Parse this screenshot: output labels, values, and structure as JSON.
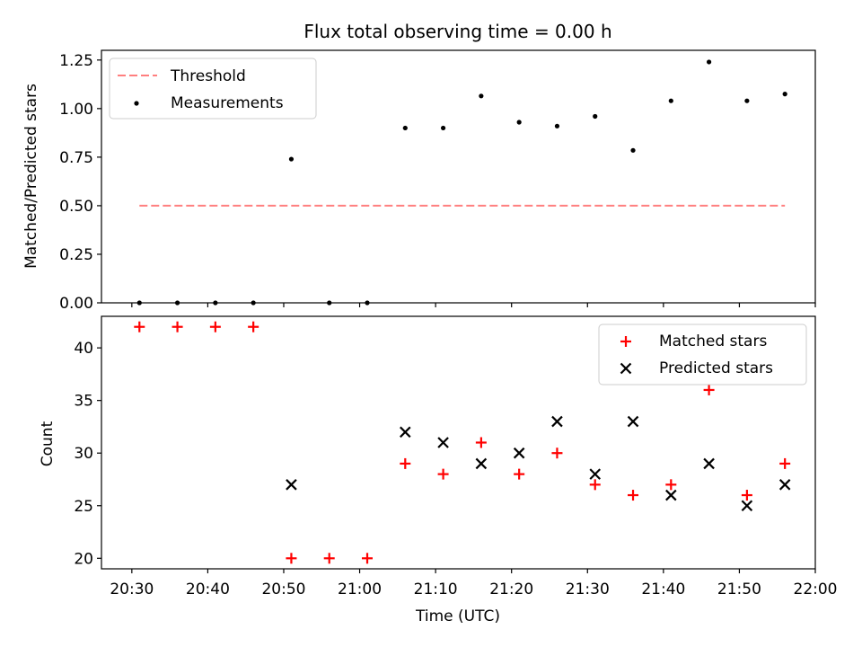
{
  "chart_data": {
    "title": "Flux total observing time = 0.00 h",
    "xlabel": "Time (UTC)",
    "x_tick_labels": [
      "20:30",
      "20:40",
      "20:50",
      "21:00",
      "21:10",
      "21:20",
      "21:30",
      "21:40",
      "21:50",
      "22:00"
    ],
    "x_ticks_minutes": [
      0,
      10,
      20,
      30,
      40,
      50,
      60,
      70,
      80,
      90
    ],
    "xlim_minutes": [
      -4,
      90
    ],
    "time_origin": "20:30",
    "panels": [
      {
        "type": "scatter",
        "ylabel": "Matched/Predicted stars",
        "ylim": [
          0,
          1.3
        ],
        "yticks": [
          0.0,
          0.25,
          0.5,
          0.75,
          1.0,
          1.25
        ],
        "ytick_labels": [
          "0.00",
          "0.25",
          "0.50",
          "0.75",
          "1.00",
          "1.25"
        ],
        "legend": {
          "placement": "top-left",
          "entries": [
            "Threshold",
            "Measurements"
          ]
        },
        "series": [
          {
            "name": "Threshold",
            "type": "line",
            "style": "dashed",
            "color": "#ff7f7f",
            "x": [
              "20:31",
              "21:56"
            ],
            "y": [
              0.5,
              0.5
            ]
          },
          {
            "name": "Measurements",
            "type": "scatter",
            "marker": "dot",
            "color": "#000000",
            "x": [
              "20:31",
              "20:36",
              "20:41",
              "20:46",
              "20:51",
              "20:56",
              "21:01",
              "21:06",
              "21:11",
              "21:16",
              "21:21",
              "21:26",
              "21:31",
              "21:36",
              "21:41",
              "21:46",
              "21:51",
              "21:56"
            ],
            "y": [
              0.0,
              0.0,
              0.0,
              0.0,
              0.74,
              0.0,
              0.0,
              0.9,
              0.9,
              1.065,
              0.93,
              0.91,
              0.96,
              0.785,
              1.04,
              1.24,
              1.04,
              1.075
            ]
          }
        ]
      },
      {
        "type": "scatter",
        "ylabel": "Count",
        "ylim": [
          19,
          43
        ],
        "yticks": [
          20,
          25,
          30,
          35,
          40
        ],
        "ytick_labels": [
          "20",
          "25",
          "30",
          "35",
          "40"
        ],
        "legend": {
          "placement": "top-right",
          "entries": [
            "Matched stars",
            "Predicted stars"
          ]
        },
        "series": [
          {
            "name": "Matched stars",
            "type": "scatter",
            "marker": "plus",
            "color": "#ff0000",
            "x": [
              "20:31",
              "20:36",
              "20:41",
              "20:46",
              "20:51",
              "20:56",
              "21:01",
              "21:06",
              "21:11",
              "21:16",
              "21:21",
              "21:26",
              "21:31",
              "21:36",
              "21:41",
              "21:46",
              "21:51",
              "21:56"
            ],
            "y": [
              42,
              42,
              42,
              42,
              20,
              20,
              20,
              29,
              28,
              31,
              28,
              30,
              27,
              26,
              27,
              36,
              26,
              29
            ]
          },
          {
            "name": "Predicted stars",
            "type": "scatter",
            "marker": "x",
            "color": "#000000",
            "x": [
              "20:51",
              "21:06",
              "21:11",
              "21:16",
              "21:21",
              "21:26",
              "21:31",
              "21:36",
              "21:41",
              "21:46",
              "21:51",
              "21:56"
            ],
            "y": [
              27,
              32,
              31,
              29,
              30,
              33,
              28,
              33,
              26,
              29,
              25,
              27
            ]
          }
        ]
      }
    ]
  }
}
